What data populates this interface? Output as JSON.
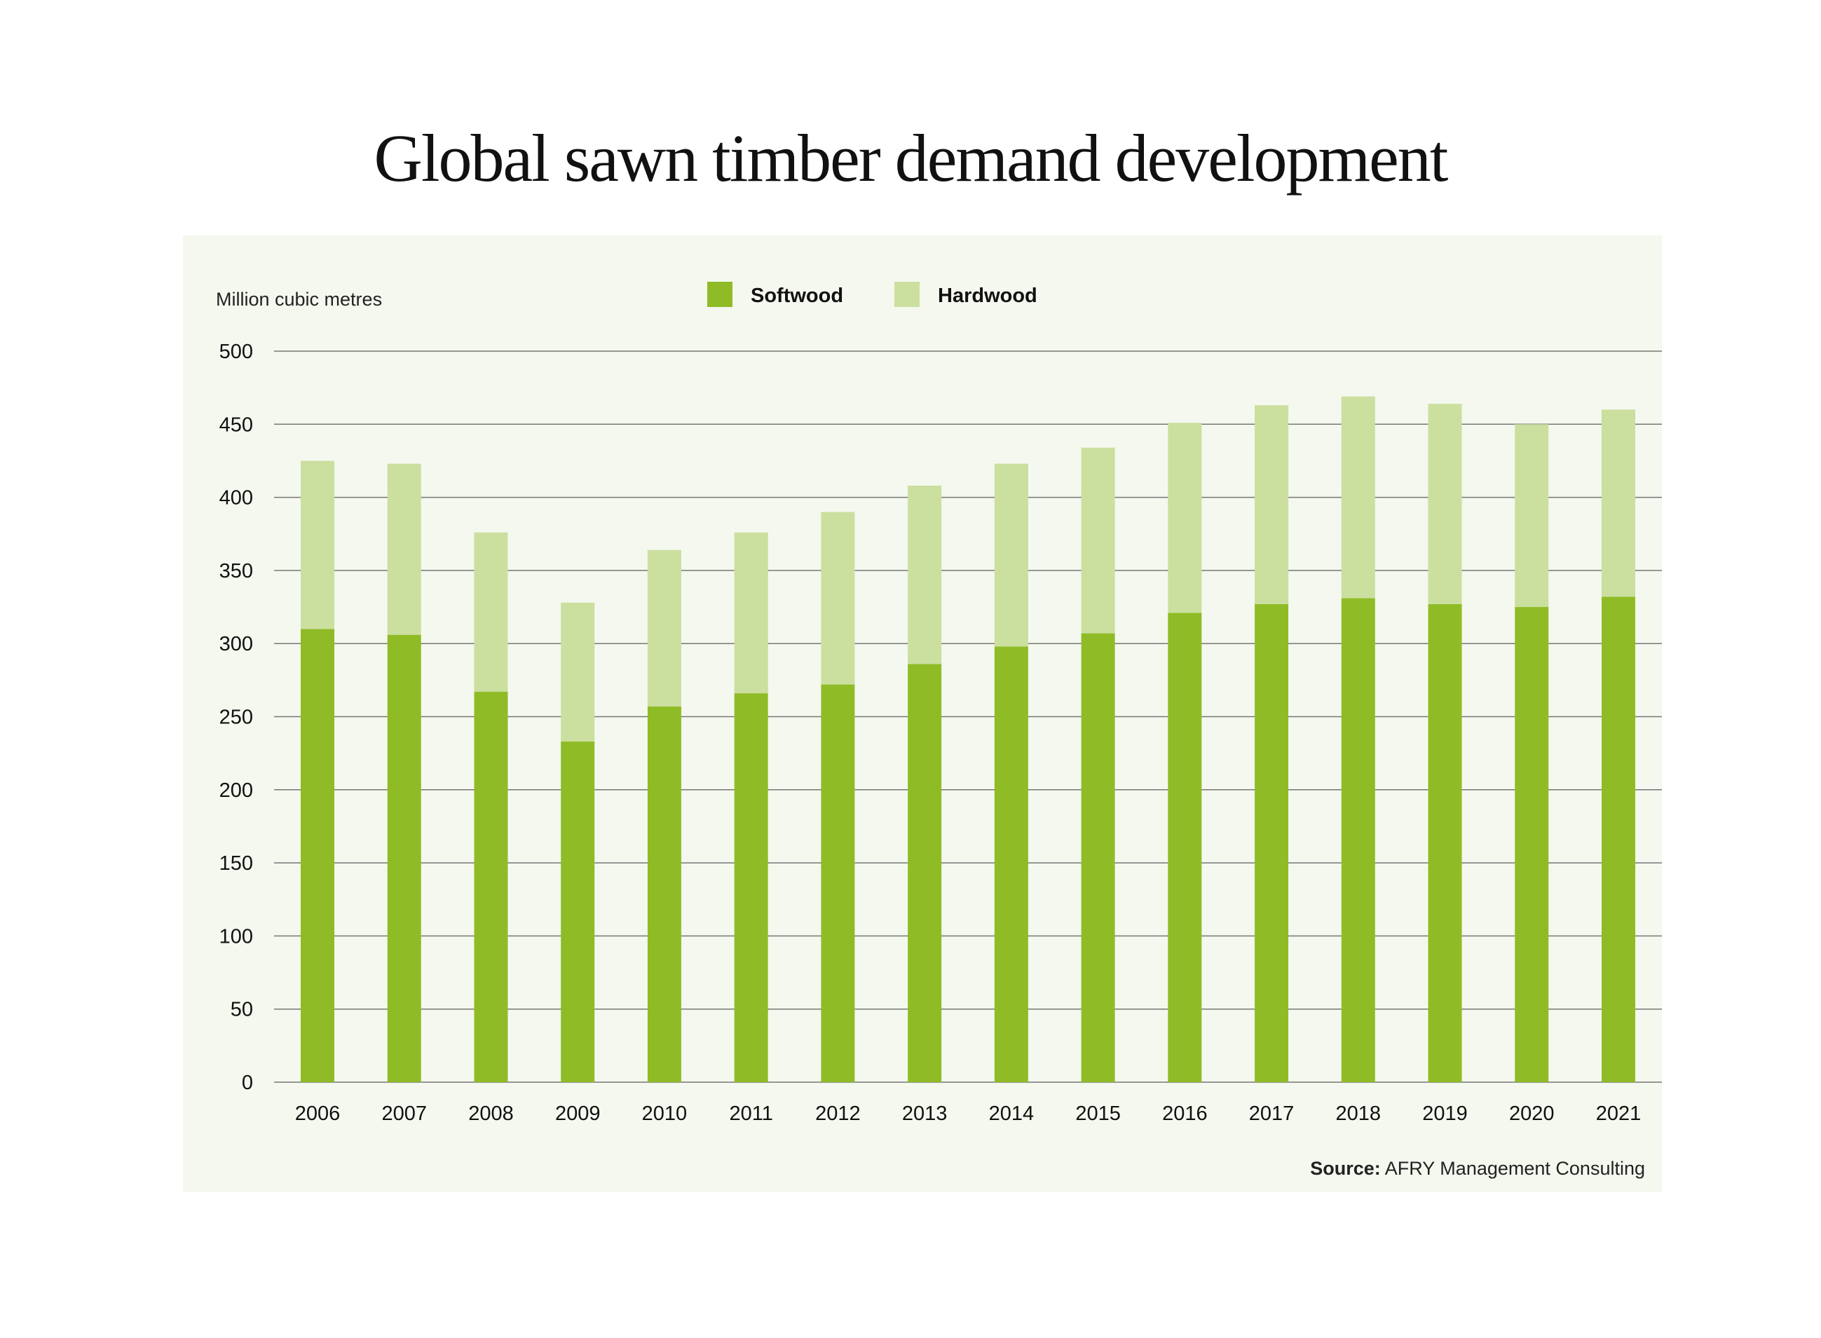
{
  "title": "Global sawn timber demand development",
  "source_prefix": "Source:",
  "source_text": " AFRY Management Consulting",
  "colors": {
    "softwood": "#8fbc26",
    "hardwood": "#cbdf9f",
    "panel": "#f4f8ee",
    "grid": "#777777"
  },
  "chart_data": {
    "type": "bar",
    "stacked": true,
    "title": "Global sawn timber demand development",
    "ylabel": "Million cubic metres",
    "xlabel": "",
    "ylim": [
      0,
      500
    ],
    "yticks": [
      0,
      50,
      100,
      150,
      200,
      250,
      300,
      350,
      400,
      450,
      500
    ],
    "grid": true,
    "legend_position": "top-center",
    "categories": [
      "2006",
      "2007",
      "2008",
      "2009",
      "2010",
      "2011",
      "2012",
      "2013",
      "2014",
      "2015",
      "2016",
      "2017",
      "2018",
      "2019",
      "2020",
      "2021"
    ],
    "series": [
      {
        "name": "Softwood",
        "color": "#8fbc26",
        "values": [
          310,
          306,
          267,
          233,
          257,
          266,
          272,
          286,
          298,
          307,
          321,
          327,
          331,
          327,
          325,
          332
        ]
      },
      {
        "name": "Hardwood",
        "color": "#cbdf9f",
        "values": [
          115,
          117,
          109,
          95,
          107,
          110,
          118,
          122,
          125,
          127,
          130,
          136,
          138,
          137,
          125,
          128
        ]
      }
    ]
  }
}
